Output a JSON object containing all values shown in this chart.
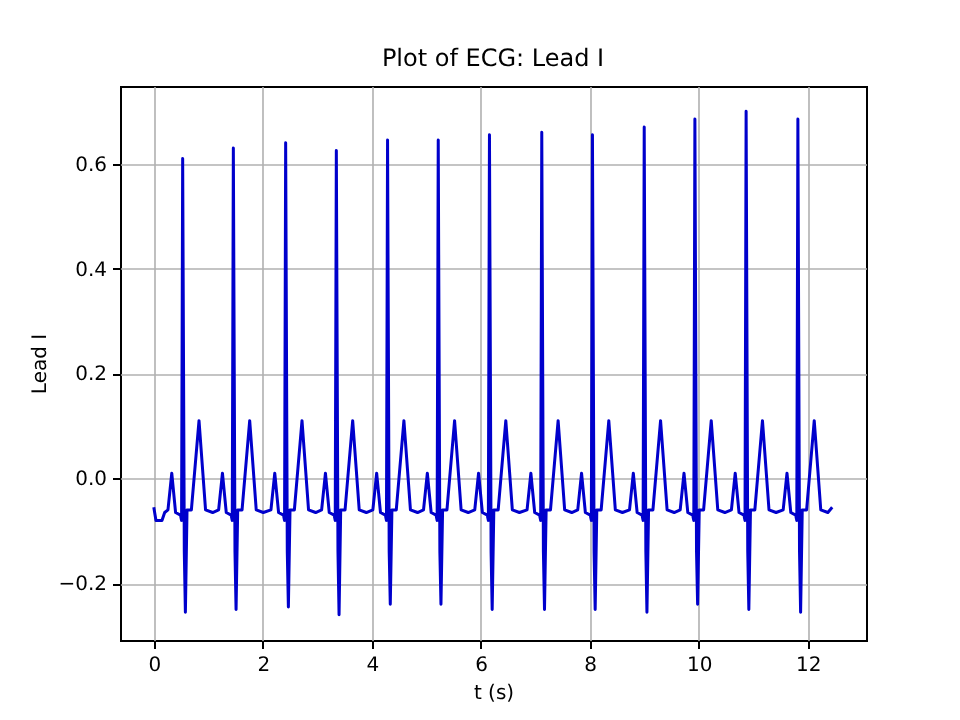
{
  "chart_data": {
    "type": "line",
    "title": "Plot of ECG: Lead I",
    "xlabel": "t (s)",
    "ylabel": "Lead I",
    "color": "#0000cc",
    "grid": true,
    "xlim": [
      -0.62,
      13.07
    ],
    "ylim": [
      -0.308,
      0.748
    ],
    "xticks": [
      0,
      2,
      4,
      6,
      8,
      10,
      12
    ],
    "yticks": [
      {
        "value": -0.2,
        "label": "−0.2"
      },
      {
        "value": 0,
        "label": "0.0"
      },
      {
        "value": 0.2,
        "label": "0.2"
      },
      {
        "value": 0.4,
        "label": "0.4"
      },
      {
        "value": 0.6,
        "label": "0.6"
      }
    ],
    "x": [
      0,
      0.04,
      0.15,
      0.2,
      0.26,
      0.33,
      0.4,
      0.49,
      0.51,
      0.53,
      0.56,
      0.58,
      0.61,
      0.69,
      0.83,
      0.95,
      1.08,
      1.19,
      1.26,
      1.33,
      1.42,
      1.44,
      1.46,
      1.49,
      1.51,
      1.54,
      1.62,
      1.76,
      1.88,
      2.01,
      2.15,
      2.22,
      2.29,
      2.38,
      2.4,
      2.42,
      2.45,
      2.47,
      2.5,
      2.58,
      2.72,
      2.84,
      2.97,
      3.08,
      3.15,
      3.22,
      3.31,
      3.33,
      3.35,
      3.38,
      3.4,
      3.43,
      3.51,
      3.65,
      3.77,
      3.9,
      4.02,
      4.09,
      4.16,
      4.25,
      4.27,
      4.29,
      4.32,
      4.34,
      4.37,
      4.45,
      4.59,
      4.71,
      4.84,
      4.95,
      5.02,
      5.09,
      5.18,
      5.2,
      5.22,
      5.25,
      5.27,
      5.3,
      5.38,
      5.52,
      5.64,
      5.77,
      5.89,
      5.96,
      6.03,
      6.12,
      6.14,
      6.16,
      6.19,
      6.21,
      6.24,
      6.32,
      6.46,
      6.58,
      6.71,
      6.85,
      6.92,
      6.99,
      7.08,
      7.1,
      7.12,
      7.15,
      7.17,
      7.2,
      7.28,
      7.42,
      7.54,
      7.67,
      7.78,
      7.85,
      7.92,
      8.01,
      8.03,
      8.05,
      8.08,
      8.1,
      8.13,
      8.21,
      8.35,
      8.47,
      8.6,
      8.73,
      8.8,
      8.87,
      8.96,
      8.98,
      9.0,
      9.03,
      9.05,
      9.08,
      9.16,
      9.3,
      9.42,
      9.55,
      9.66,
      9.73,
      9.8,
      9.89,
      9.91,
      9.93,
      9.96,
      9.98,
      10.01,
      10.09,
      10.23,
      10.35,
      10.48,
      10.6,
      10.67,
      10.74,
      10.83,
      10.85,
      10.87,
      10.9,
      10.92,
      10.95,
      11.03,
      11.17,
      11.29,
      11.42,
      11.55,
      11.62,
      11.69,
      11.78,
      11.8,
      11.82,
      11.85,
      11.87,
      11.9,
      11.98,
      12.12,
      12.24,
      12.37,
      12.45
    ],
    "values": [
      -0.055,
      -0.08,
      -0.08,
      -0.065,
      -0.06,
      0.01,
      -0.065,
      -0.07,
      -0.08,
      0.61,
      -0.14,
      -0.255,
      -0.06,
      -0.06,
      0.11,
      -0.06,
      -0.065,
      -0.06,
      0.01,
      -0.065,
      -0.07,
      -0.08,
      0.63,
      -0.14,
      -0.25,
      -0.06,
      -0.06,
      0.11,
      -0.06,
      -0.065,
      -0.06,
      0.01,
      -0.065,
      -0.07,
      -0.08,
      0.64,
      -0.14,
      -0.245,
      -0.06,
      -0.06,
      0.11,
      -0.06,
      -0.065,
      -0.06,
      0.01,
      -0.065,
      -0.07,
      -0.08,
      0.625,
      -0.14,
      -0.26,
      -0.06,
      -0.06,
      0.11,
      -0.06,
      -0.065,
      -0.06,
      0.01,
      -0.065,
      -0.07,
      -0.08,
      0.645,
      -0.14,
      -0.24,
      -0.06,
      -0.06,
      0.11,
      -0.06,
      -0.065,
      -0.06,
      0.01,
      -0.065,
      -0.07,
      -0.08,
      0.645,
      -0.14,
      -0.24,
      -0.06,
      -0.06,
      0.11,
      -0.06,
      -0.065,
      -0.06,
      0.01,
      -0.065,
      -0.07,
      -0.08,
      0.655,
      -0.14,
      -0.25,
      -0.06,
      -0.06,
      0.11,
      -0.06,
      -0.065,
      -0.06,
      0.01,
      -0.065,
      -0.07,
      -0.08,
      0.66,
      -0.14,
      -0.25,
      -0.06,
      -0.06,
      0.11,
      -0.06,
      -0.065,
      -0.06,
      0.01,
      -0.065,
      -0.07,
      -0.08,
      0.655,
      -0.14,
      -0.25,
      -0.06,
      -0.06,
      0.11,
      -0.06,
      -0.065,
      -0.06,
      0.01,
      -0.065,
      -0.07,
      -0.08,
      0.67,
      -0.14,
      -0.255,
      -0.06,
      -0.06,
      0.11,
      -0.06,
      -0.065,
      -0.06,
      0.01,
      -0.065,
      -0.07,
      -0.08,
      0.685,
      -0.14,
      -0.24,
      -0.06,
      -0.06,
      0.11,
      -0.06,
      -0.065,
      -0.06,
      0.01,
      -0.065,
      -0.07,
      -0.08,
      0.7,
      -0.14,
      -0.25,
      -0.06,
      -0.06,
      0.11,
      -0.06,
      -0.065,
      -0.06,
      0.01,
      -0.065,
      -0.07,
      -0.08,
      0.685,
      -0.14,
      -0.255,
      -0.06,
      -0.06,
      0.11,
      -0.06,
      -0.065,
      -0.055
    ]
  }
}
